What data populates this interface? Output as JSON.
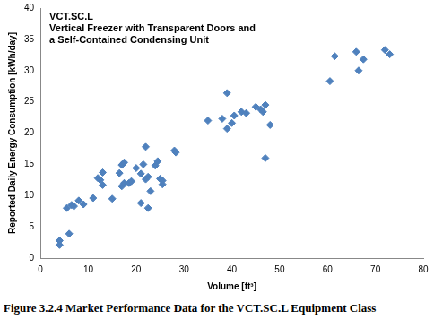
{
  "chart_data": {
    "type": "scatter",
    "title": "VCT.SC.L",
    "subtitle": "Vertical Freezer with Transparent Doors and a Self-Contained Condensing Unit",
    "caption": "Figure 3.2.4 Market Performance Data for the VCT.SC.L Equipment Class",
    "x_label": "Volume [ft³]",
    "y_label": "Reported Daily Energy Consumption [kWh/day]",
    "x": [
      4,
      4,
      5.5,
      6,
      6.5,
      7,
      8,
      9,
      11,
      12,
      12.5,
      13,
      13,
      15,
      16.5,
      17,
      17.5,
      17,
      17.5,
      18.5,
      19,
      20,
      21,
      21,
      21.5,
      22,
      22,
      22.5,
      22.5,
      23,
      24,
      24.5,
      25,
      25.5,
      25.5,
      28,
      28.3,
      35,
      38,
      39,
      39,
      40,
      40.5,
      42,
      43,
      45,
      46,
      46.5,
      47,
      47,
      48,
      60.5,
      61.5,
      66,
      66.5,
      67.5,
      72,
      73
    ],
    "values": [
      2.8,
      2.1,
      8,
      3.9,
      8.5,
      8.3,
      9.2,
      8.6,
      9.6,
      12.8,
      12.5,
      11.7,
      13.7,
      9.5,
      13.6,
      14.9,
      15.3,
      11.5,
      12,
      12,
      12.3,
      14.4,
      8.8,
      13.5,
      15,
      17.8,
      12.6,
      8,
      13,
      10.7,
      14.8,
      15.5,
      12.7,
      11.8,
      12.4,
      17.2,
      16.9,
      22,
      22.3,
      26.4,
      20.7,
      21.6,
      22.8,
      23.4,
      23.2,
      24.2,
      23.8,
      23.4,
      24.5,
      16,
      21.3,
      28.3,
      32.3,
      33,
      30,
      31.8,
      33.3,
      32.6
    ],
    "color": "#4f81bd",
    "marker": "diamond",
    "xlim": [
      0,
      80
    ],
    "xticks": [
      0,
      10,
      20,
      30,
      40,
      50,
      60,
      70,
      80
    ],
    "ylim": [
      0,
      40
    ],
    "yticks": [
      0,
      5,
      10,
      15,
      20,
      25,
      30,
      35,
      40
    ],
    "grid": false
  }
}
